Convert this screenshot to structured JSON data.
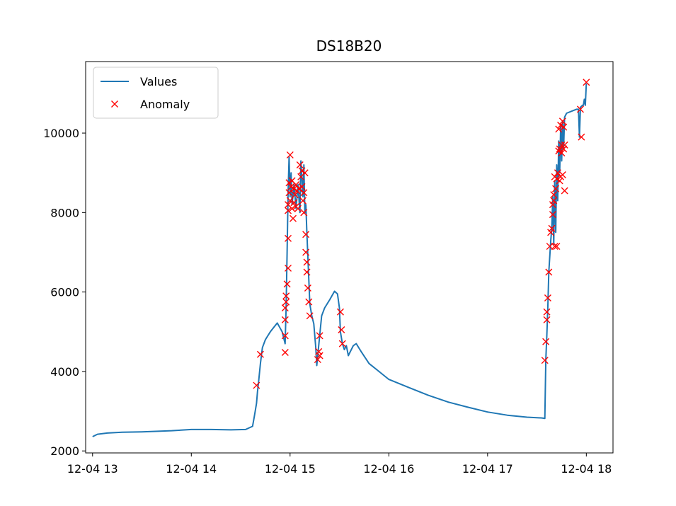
{
  "chart_data": {
    "type": "line",
    "title": "DS18B20",
    "xlabel": "",
    "ylabel": "",
    "x_axis": "time (hours)",
    "xlim": [
      12.93,
      18.27
    ],
    "ylim": [
      1950,
      11800
    ],
    "x_ticks": [
      {
        "value": 13,
        "label": "12-04 13"
      },
      {
        "value": 14,
        "label": "12-04 14"
      },
      {
        "value": 15,
        "label": "12-04 15"
      },
      {
        "value": 16,
        "label": "12-04 16"
      },
      {
        "value": 17,
        "label": "12-04 17"
      },
      {
        "value": 18,
        "label": "12-04 18"
      }
    ],
    "y_ticks": [
      {
        "value": 2000,
        "label": "2000"
      },
      {
        "value": 4000,
        "label": "4000"
      },
      {
        "value": 6000,
        "label": "6000"
      },
      {
        "value": 8000,
        "label": "8000"
      },
      {
        "value": 10000,
        "label": "10000"
      }
    ],
    "legend": {
      "placement": "upper-left"
    },
    "series": [
      {
        "name": "Values",
        "style": "line",
        "color": "#1f77b4",
        "points": [
          [
            13.0,
            2360
          ],
          [
            13.05,
            2420
          ],
          [
            13.15,
            2450
          ],
          [
            13.3,
            2470
          ],
          [
            13.5,
            2480
          ],
          [
            13.8,
            2510
          ],
          [
            14.0,
            2540
          ],
          [
            14.2,
            2540
          ],
          [
            14.4,
            2530
          ],
          [
            14.55,
            2540
          ],
          [
            14.62,
            2620
          ],
          [
            14.64,
            2900
          ],
          [
            14.66,
            3200
          ],
          [
            14.67,
            3500
          ],
          [
            14.68,
            3700
          ],
          [
            14.7,
            4200
          ],
          [
            14.72,
            4600
          ],
          [
            14.75,
            4800
          ],
          [
            14.8,
            5000
          ],
          [
            14.87,
            5220
          ],
          [
            14.92,
            5000
          ],
          [
            14.95,
            4700
          ],
          [
            14.96,
            5600
          ],
          [
            14.97,
            7000
          ],
          [
            14.98,
            8500
          ],
          [
            14.99,
            9400
          ],
          [
            15.0,
            8400
          ],
          [
            15.01,
            9000
          ],
          [
            15.02,
            8200
          ],
          [
            15.04,
            8700
          ],
          [
            15.06,
            8100
          ],
          [
            15.08,
            8700
          ],
          [
            15.1,
            8000
          ],
          [
            15.11,
            9300
          ],
          [
            15.13,
            8400
          ],
          [
            15.14,
            9200
          ],
          [
            15.15,
            8000
          ],
          [
            15.16,
            8200
          ],
          [
            15.17,
            7500
          ],
          [
            15.18,
            6900
          ],
          [
            15.19,
            6300
          ],
          [
            15.2,
            5700
          ],
          [
            15.22,
            5400
          ],
          [
            15.24,
            5200
          ],
          [
            15.26,
            4600
          ],
          [
            15.27,
            4150
          ],
          [
            15.28,
            4400
          ],
          [
            15.3,
            4900
          ],
          [
            15.32,
            5400
          ],
          [
            15.35,
            5600
          ],
          [
            15.4,
            5800
          ],
          [
            15.45,
            6020
          ],
          [
            15.48,
            5950
          ],
          [
            15.5,
            5600
          ],
          [
            15.51,
            5000
          ],
          [
            15.53,
            4700
          ],
          [
            15.55,
            4550
          ],
          [
            15.57,
            4650
          ],
          [
            15.59,
            4400
          ],
          [
            15.61,
            4500
          ],
          [
            15.64,
            4650
          ],
          [
            15.67,
            4700
          ],
          [
            15.72,
            4500
          ],
          [
            15.8,
            4200
          ],
          [
            15.9,
            4000
          ],
          [
            16.0,
            3800
          ],
          [
            16.2,
            3600
          ],
          [
            16.4,
            3400
          ],
          [
            16.6,
            3230
          ],
          [
            16.8,
            3100
          ],
          [
            17.0,
            2980
          ],
          [
            17.2,
            2900
          ],
          [
            17.4,
            2850
          ],
          [
            17.55,
            2830
          ],
          [
            17.58,
            2820
          ],
          [
            17.59,
            4300
          ],
          [
            17.6,
            4900
          ],
          [
            17.61,
            5600
          ],
          [
            17.62,
            6500
          ],
          [
            17.64,
            7300
          ],
          [
            17.65,
            7600
          ],
          [
            17.66,
            8400
          ],
          [
            17.67,
            7200
          ],
          [
            17.68,
            8800
          ],
          [
            17.69,
            7500
          ],
          [
            17.7,
            9200
          ],
          [
            17.71,
            8300
          ],
          [
            17.72,
            9800
          ],
          [
            17.73,
            9000
          ],
          [
            17.74,
            10200
          ],
          [
            17.75,
            9300
          ],
          [
            17.76,
            10300
          ],
          [
            17.77,
            9600
          ],
          [
            17.78,
            10400
          ],
          [
            17.8,
            10500
          ],
          [
            17.85,
            10550
          ],
          [
            17.9,
            10600
          ],
          [
            17.92,
            10600
          ],
          [
            17.93,
            9900
          ],
          [
            17.94,
            10650
          ],
          [
            17.96,
            10700
          ],
          [
            17.97,
            10700
          ],
          [
            17.98,
            10850
          ],
          [
            17.99,
            10700
          ],
          [
            18.0,
            11250
          ]
        ]
      },
      {
        "name": "Anomaly",
        "style": "marker-x",
        "color": "#ff0000",
        "points": [
          [
            14.66,
            3650
          ],
          [
            14.7,
            4430
          ],
          [
            14.95,
            4480
          ],
          [
            14.95,
            4900
          ],
          [
            14.95,
            5300
          ],
          [
            14.95,
            5600
          ],
          [
            14.96,
            5750
          ],
          [
            14.96,
            5900
          ],
          [
            14.97,
            6200
          ],
          [
            14.98,
            6600
          ],
          [
            14.98,
            7350
          ],
          [
            14.98,
            8050
          ],
          [
            14.98,
            8200
          ],
          [
            14.99,
            8500
          ],
          [
            14.99,
            8750
          ],
          [
            15.0,
            9450
          ],
          [
            15.0,
            8300
          ],
          [
            15.01,
            8650
          ],
          [
            15.02,
            8100
          ],
          [
            15.02,
            8800
          ],
          [
            15.03,
            7850
          ],
          [
            15.04,
            8250
          ],
          [
            15.04,
            8600
          ],
          [
            15.05,
            8450
          ],
          [
            15.06,
            8150
          ],
          [
            15.06,
            8700
          ],
          [
            15.07,
            8550
          ],
          [
            15.08,
            8100
          ],
          [
            15.09,
            8600
          ],
          [
            15.1,
            9200
          ],
          [
            15.11,
            8900
          ],
          [
            15.12,
            8650
          ],
          [
            15.12,
            9050
          ],
          [
            15.13,
            8300
          ],
          [
            15.14,
            8000
          ],
          [
            15.14,
            8500
          ],
          [
            15.15,
            9000
          ],
          [
            15.16,
            7450
          ],
          [
            15.16,
            7000
          ],
          [
            15.17,
            6750
          ],
          [
            15.17,
            6500
          ],
          [
            15.18,
            6100
          ],
          [
            15.19,
            5750
          ],
          [
            15.2,
            5400
          ],
          [
            15.28,
            4300
          ],
          [
            15.29,
            4500
          ],
          [
            15.3,
            4400
          ],
          [
            15.3,
            4900
          ],
          [
            15.51,
            5500
          ],
          [
            15.52,
            5050
          ],
          [
            15.53,
            4700
          ],
          [
            17.58,
            4280
          ],
          [
            17.59,
            4750
          ],
          [
            17.6,
            5300
          ],
          [
            17.6,
            5500
          ],
          [
            17.61,
            5850
          ],
          [
            17.62,
            6500
          ],
          [
            17.63,
            7150
          ],
          [
            17.64,
            7500
          ],
          [
            17.65,
            7600
          ],
          [
            17.66,
            7950
          ],
          [
            17.66,
            8200
          ],
          [
            17.67,
            8450
          ],
          [
            17.67,
            8300
          ],
          [
            17.68,
            7150
          ],
          [
            17.68,
            8900
          ],
          [
            17.69,
            8600
          ],
          [
            17.7,
            7150
          ],
          [
            17.7,
            8850
          ],
          [
            17.71,
            9000
          ],
          [
            17.72,
            9550
          ],
          [
            17.72,
            10100
          ],
          [
            17.73,
            9600
          ],
          [
            17.73,
            8800
          ],
          [
            17.74,
            8900
          ],
          [
            17.74,
            10200
          ],
          [
            17.75,
            9500
          ],
          [
            17.75,
            9700
          ],
          [
            17.76,
            10300
          ],
          [
            17.76,
            8950
          ],
          [
            17.77,
            10150
          ],
          [
            17.77,
            9600
          ],
          [
            17.78,
            9700
          ],
          [
            17.78,
            8550
          ],
          [
            17.94,
            10600
          ],
          [
            17.95,
            9900
          ],
          [
            18.0,
            11280
          ]
        ]
      }
    ]
  }
}
